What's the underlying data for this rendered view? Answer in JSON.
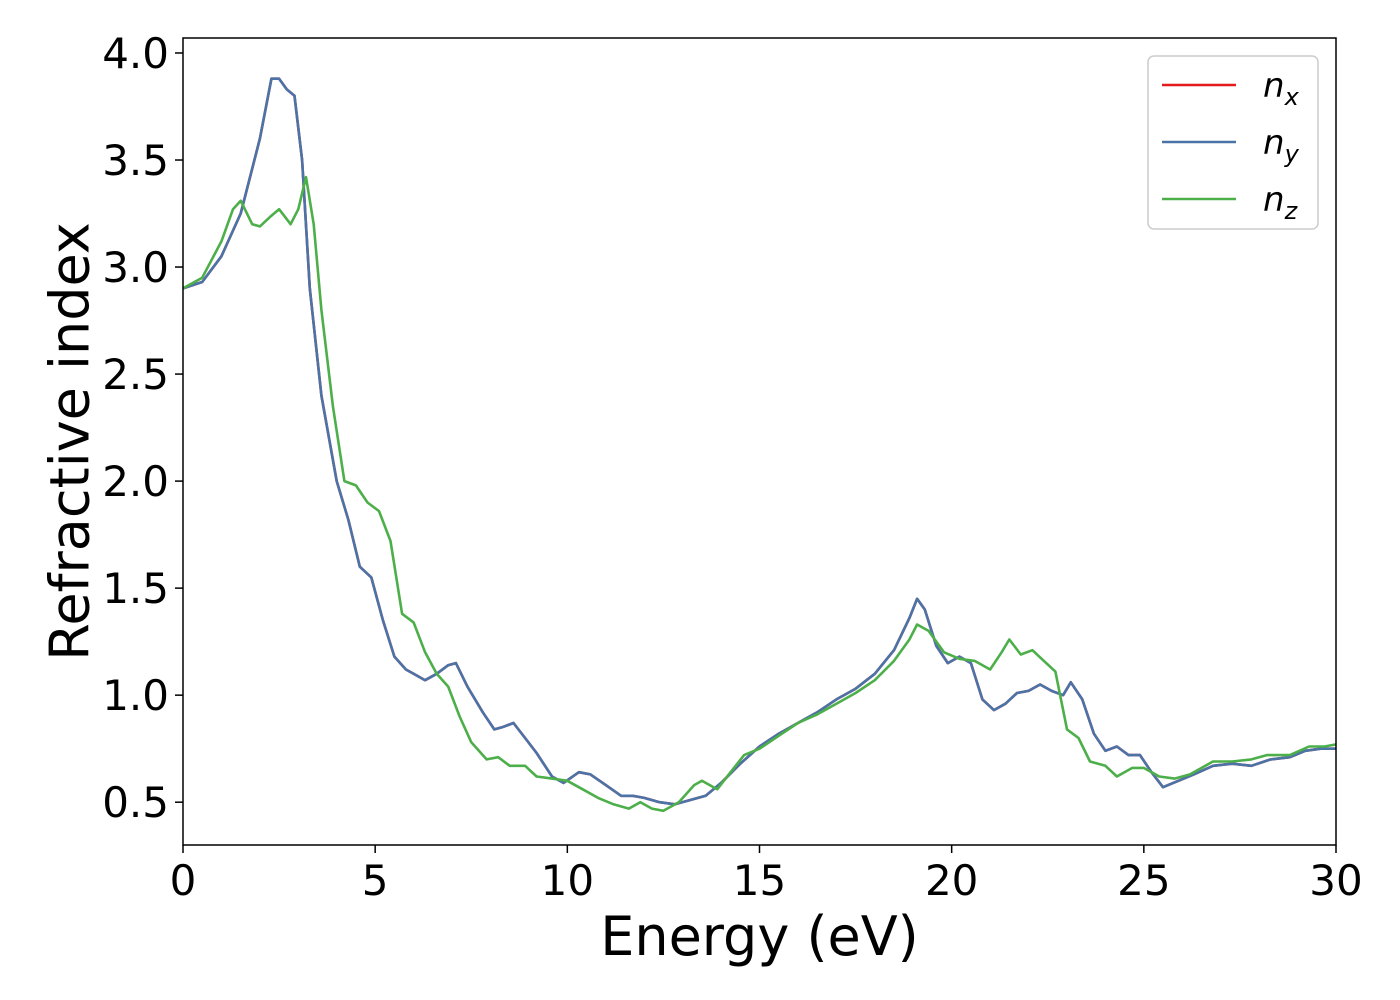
{
  "chart_data": {
    "type": "line",
    "title": "",
    "xlabel": "Energy (eV)",
    "ylabel": "Refractive index",
    "xlim": [
      0,
      30
    ],
    "ylim": [
      0.3,
      4.07
    ],
    "xticks": [
      0,
      5,
      10,
      15,
      20,
      25,
      30
    ],
    "xtick_labels": [
      "0",
      "5",
      "10",
      "15",
      "20",
      "25",
      "30"
    ],
    "yticks": [
      0.5,
      1.0,
      1.5,
      2.0,
      2.5,
      3.0,
      3.5,
      4.0
    ],
    "ytick_labels": [
      "0.5",
      "1.0",
      "1.5",
      "2.0",
      "2.5",
      "3.0",
      "3.5",
      "4.0"
    ],
    "grid": false,
    "legend_position": "top-right",
    "series": [
      {
        "name": "n_x",
        "legend_base": "n",
        "legend_sub": "x",
        "color": "#e41a1c",
        "points": [
          [
            0,
            2.9
          ],
          [
            0.5,
            2.93
          ],
          [
            1.0,
            3.05
          ],
          [
            1.5,
            3.25
          ],
          [
            2.0,
            3.6
          ],
          [
            2.3,
            3.88
          ],
          [
            2.5,
            3.88
          ],
          [
            2.7,
            3.83
          ],
          [
            2.9,
            3.8
          ],
          [
            3.1,
            3.5
          ],
          [
            3.3,
            2.9
          ],
          [
            3.6,
            2.4
          ],
          [
            4.0,
            2.0
          ],
          [
            4.3,
            1.82
          ],
          [
            4.6,
            1.6
          ],
          [
            4.9,
            1.55
          ],
          [
            5.2,
            1.35
          ],
          [
            5.5,
            1.18
          ],
          [
            5.8,
            1.12
          ],
          [
            6.0,
            1.1
          ],
          [
            6.3,
            1.07
          ],
          [
            6.6,
            1.1
          ],
          [
            6.9,
            1.14
          ],
          [
            7.1,
            1.15
          ],
          [
            7.4,
            1.04
          ],
          [
            7.8,
            0.92
          ],
          [
            8.1,
            0.84
          ],
          [
            8.3,
            0.85
          ],
          [
            8.6,
            0.87
          ],
          [
            8.9,
            0.8
          ],
          [
            9.2,
            0.73
          ],
          [
            9.6,
            0.62
          ],
          [
            9.9,
            0.59
          ],
          [
            10.3,
            0.64
          ],
          [
            10.6,
            0.63
          ],
          [
            11.0,
            0.58
          ],
          [
            11.4,
            0.53
          ],
          [
            11.7,
            0.53
          ],
          [
            12.0,
            0.52
          ],
          [
            12.4,
            0.5
          ],
          [
            12.8,
            0.49
          ],
          [
            13.2,
            0.51
          ],
          [
            13.6,
            0.53
          ],
          [
            14.0,
            0.59
          ],
          [
            14.5,
            0.68
          ],
          [
            15.0,
            0.76
          ],
          [
            15.5,
            0.82
          ],
          [
            16.0,
            0.87
          ],
          [
            16.5,
            0.92
          ],
          [
            17.0,
            0.98
          ],
          [
            17.5,
            1.03
          ],
          [
            18.0,
            1.1
          ],
          [
            18.5,
            1.21
          ],
          [
            18.9,
            1.36
          ],
          [
            19.1,
            1.45
          ],
          [
            19.3,
            1.4
          ],
          [
            19.6,
            1.23
          ],
          [
            19.9,
            1.15
          ],
          [
            20.2,
            1.18
          ],
          [
            20.5,
            1.15
          ],
          [
            20.8,
            0.98
          ],
          [
            21.1,
            0.93
          ],
          [
            21.4,
            0.96
          ],
          [
            21.7,
            1.01
          ],
          [
            22.0,
            1.02
          ],
          [
            22.3,
            1.05
          ],
          [
            22.6,
            1.02
          ],
          [
            22.9,
            1.0
          ],
          [
            23.1,
            1.06
          ],
          [
            23.4,
            0.98
          ],
          [
            23.7,
            0.82
          ],
          [
            24.0,
            0.74
          ],
          [
            24.3,
            0.76
          ],
          [
            24.6,
            0.72
          ],
          [
            24.9,
            0.72
          ],
          [
            25.2,
            0.64
          ],
          [
            25.5,
            0.57
          ],
          [
            25.9,
            0.6
          ],
          [
            26.3,
            0.63
          ],
          [
            26.8,
            0.67
          ],
          [
            27.3,
            0.68
          ],
          [
            27.8,
            0.67
          ],
          [
            28.3,
            0.7
          ],
          [
            28.8,
            0.71
          ],
          [
            29.2,
            0.74
          ],
          [
            29.6,
            0.75
          ],
          [
            30.0,
            0.75
          ]
        ]
      },
      {
        "name": "n_y",
        "legend_base": "n",
        "legend_sub": "y",
        "color": "#4a74a8",
        "points": [
          [
            0,
            2.9
          ],
          [
            0.5,
            2.93
          ],
          [
            1.0,
            3.05
          ],
          [
            1.5,
            3.25
          ],
          [
            2.0,
            3.6
          ],
          [
            2.3,
            3.88
          ],
          [
            2.5,
            3.88
          ],
          [
            2.7,
            3.83
          ],
          [
            2.9,
            3.8
          ],
          [
            3.1,
            3.5
          ],
          [
            3.3,
            2.9
          ],
          [
            3.6,
            2.4
          ],
          [
            4.0,
            2.0
          ],
          [
            4.3,
            1.82
          ],
          [
            4.6,
            1.6
          ],
          [
            4.9,
            1.55
          ],
          [
            5.2,
            1.35
          ],
          [
            5.5,
            1.18
          ],
          [
            5.8,
            1.12
          ],
          [
            6.0,
            1.1
          ],
          [
            6.3,
            1.07
          ],
          [
            6.6,
            1.1
          ],
          [
            6.9,
            1.14
          ],
          [
            7.1,
            1.15
          ],
          [
            7.4,
            1.04
          ],
          [
            7.8,
            0.92
          ],
          [
            8.1,
            0.84
          ],
          [
            8.3,
            0.85
          ],
          [
            8.6,
            0.87
          ],
          [
            8.9,
            0.8
          ],
          [
            9.2,
            0.73
          ],
          [
            9.6,
            0.62
          ],
          [
            9.9,
            0.59
          ],
          [
            10.3,
            0.64
          ],
          [
            10.6,
            0.63
          ],
          [
            11.0,
            0.58
          ],
          [
            11.4,
            0.53
          ],
          [
            11.7,
            0.53
          ],
          [
            12.0,
            0.52
          ],
          [
            12.4,
            0.5
          ],
          [
            12.8,
            0.49
          ],
          [
            13.2,
            0.51
          ],
          [
            13.6,
            0.53
          ],
          [
            14.0,
            0.59
          ],
          [
            14.5,
            0.68
          ],
          [
            15.0,
            0.76
          ],
          [
            15.5,
            0.82
          ],
          [
            16.0,
            0.87
          ],
          [
            16.5,
            0.92
          ],
          [
            17.0,
            0.98
          ],
          [
            17.5,
            1.03
          ],
          [
            18.0,
            1.1
          ],
          [
            18.5,
            1.21
          ],
          [
            18.9,
            1.36
          ],
          [
            19.1,
            1.45
          ],
          [
            19.3,
            1.4
          ],
          [
            19.6,
            1.23
          ],
          [
            19.9,
            1.15
          ],
          [
            20.2,
            1.18
          ],
          [
            20.5,
            1.15
          ],
          [
            20.8,
            0.98
          ],
          [
            21.1,
            0.93
          ],
          [
            21.4,
            0.96
          ],
          [
            21.7,
            1.01
          ],
          [
            22.0,
            1.02
          ],
          [
            22.3,
            1.05
          ],
          [
            22.6,
            1.02
          ],
          [
            22.9,
            1.0
          ],
          [
            23.1,
            1.06
          ],
          [
            23.4,
            0.98
          ],
          [
            23.7,
            0.82
          ],
          [
            24.0,
            0.74
          ],
          [
            24.3,
            0.76
          ],
          [
            24.6,
            0.72
          ],
          [
            24.9,
            0.72
          ],
          [
            25.2,
            0.64
          ],
          [
            25.5,
            0.57
          ],
          [
            25.9,
            0.6
          ],
          [
            26.3,
            0.63
          ],
          [
            26.8,
            0.67
          ],
          [
            27.3,
            0.68
          ],
          [
            27.8,
            0.67
          ],
          [
            28.3,
            0.7
          ],
          [
            28.8,
            0.71
          ],
          [
            29.2,
            0.74
          ],
          [
            29.6,
            0.75
          ],
          [
            30.0,
            0.75
          ]
        ]
      },
      {
        "name": "n_z",
        "legend_base": "n",
        "legend_sub": "z",
        "color": "#4daf4a",
        "points": [
          [
            0,
            2.9
          ],
          [
            0.5,
            2.95
          ],
          [
            1.0,
            3.12
          ],
          [
            1.3,
            3.27
          ],
          [
            1.5,
            3.31
          ],
          [
            1.8,
            3.2
          ],
          [
            2.0,
            3.19
          ],
          [
            2.3,
            3.24
          ],
          [
            2.5,
            3.27
          ],
          [
            2.8,
            3.2
          ],
          [
            3.0,
            3.27
          ],
          [
            3.2,
            3.42
          ],
          [
            3.4,
            3.2
          ],
          [
            3.6,
            2.8
          ],
          [
            3.9,
            2.35
          ],
          [
            4.2,
            2.0
          ],
          [
            4.5,
            1.98
          ],
          [
            4.8,
            1.9
          ],
          [
            5.1,
            1.86
          ],
          [
            5.4,
            1.72
          ],
          [
            5.7,
            1.38
          ],
          [
            6.0,
            1.34
          ],
          [
            6.3,
            1.2
          ],
          [
            6.6,
            1.1
          ],
          [
            6.9,
            1.04
          ],
          [
            7.2,
            0.9
          ],
          [
            7.5,
            0.78
          ],
          [
            7.9,
            0.7
          ],
          [
            8.2,
            0.71
          ],
          [
            8.5,
            0.67
          ],
          [
            8.9,
            0.67
          ],
          [
            9.2,
            0.62
          ],
          [
            9.6,
            0.61
          ],
          [
            10.0,
            0.6
          ],
          [
            10.4,
            0.56
          ],
          [
            10.8,
            0.52
          ],
          [
            11.2,
            0.49
          ],
          [
            11.6,
            0.47
          ],
          [
            11.9,
            0.5
          ],
          [
            12.2,
            0.47
          ],
          [
            12.5,
            0.46
          ],
          [
            12.9,
            0.5
          ],
          [
            13.3,
            0.58
          ],
          [
            13.5,
            0.6
          ],
          [
            13.9,
            0.56
          ],
          [
            14.2,
            0.63
          ],
          [
            14.6,
            0.72
          ],
          [
            15.0,
            0.75
          ],
          [
            15.5,
            0.81
          ],
          [
            16.0,
            0.87
          ],
          [
            16.5,
            0.91
          ],
          [
            17.0,
            0.96
          ],
          [
            17.5,
            1.01
          ],
          [
            18.0,
            1.07
          ],
          [
            18.5,
            1.16
          ],
          [
            18.9,
            1.26
          ],
          [
            19.1,
            1.33
          ],
          [
            19.4,
            1.3
          ],
          [
            19.8,
            1.2
          ],
          [
            20.2,
            1.17
          ],
          [
            20.6,
            1.16
          ],
          [
            21.0,
            1.12
          ],
          [
            21.3,
            1.2
          ],
          [
            21.5,
            1.26
          ],
          [
            21.8,
            1.19
          ],
          [
            22.1,
            1.21
          ],
          [
            22.4,
            1.16
          ],
          [
            22.7,
            1.11
          ],
          [
            23.0,
            0.84
          ],
          [
            23.3,
            0.8
          ],
          [
            23.6,
            0.69
          ],
          [
            24.0,
            0.67
          ],
          [
            24.3,
            0.62
          ],
          [
            24.7,
            0.66
          ],
          [
            25.0,
            0.66
          ],
          [
            25.4,
            0.62
          ],
          [
            25.8,
            0.61
          ],
          [
            26.2,
            0.63
          ],
          [
            26.8,
            0.69
          ],
          [
            27.3,
            0.69
          ],
          [
            27.8,
            0.7
          ],
          [
            28.2,
            0.72
          ],
          [
            28.8,
            0.72
          ],
          [
            29.3,
            0.76
          ],
          [
            29.7,
            0.76
          ],
          [
            30.0,
            0.77
          ]
        ]
      }
    ]
  }
}
